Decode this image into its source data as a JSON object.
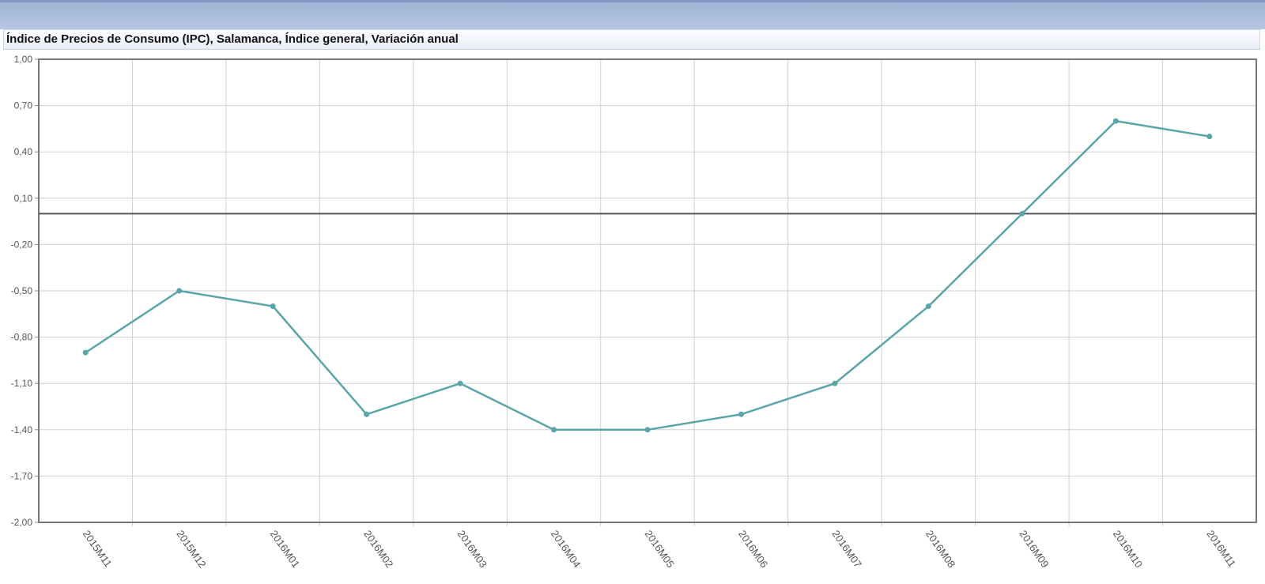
{
  "window": {
    "title": "Índice de Precios de Consumo (IPC), Salamanca, Índice general, Variación anual"
  },
  "chart_data": {
    "type": "line",
    "title": "Índice de Precios de Consumo (IPC), Salamanca, Índice general, Variación anual",
    "categories": [
      "2015M11",
      "2015M12",
      "2016M01",
      "2016M02",
      "2016M03",
      "2016M04",
      "2016M05",
      "2016M06",
      "2016M07",
      "2016M08",
      "2016M09",
      "2016M10",
      "2016M11"
    ],
    "values": [
      -0.9,
      -0.5,
      -0.6,
      -1.3,
      -1.1,
      -1.4,
      -1.4,
      -1.3,
      -1.1,
      -0.6,
      0.0,
      0.6,
      0.5
    ],
    "ylim": [
      -2.0,
      1.0
    ],
    "yticks": [
      "1,00",
      "0,70",
      "0,40",
      "0,10",
      "-0,20",
      "-0,50",
      "-0,80",
      "-1,10",
      "-1,40",
      "-1,70",
      "-2,00"
    ],
    "reference_line": 0,
    "grid": true,
    "colors": {
      "line": "#5aa5a8",
      "zero_line": "#555555",
      "grid": "#d0d0d0"
    }
  }
}
